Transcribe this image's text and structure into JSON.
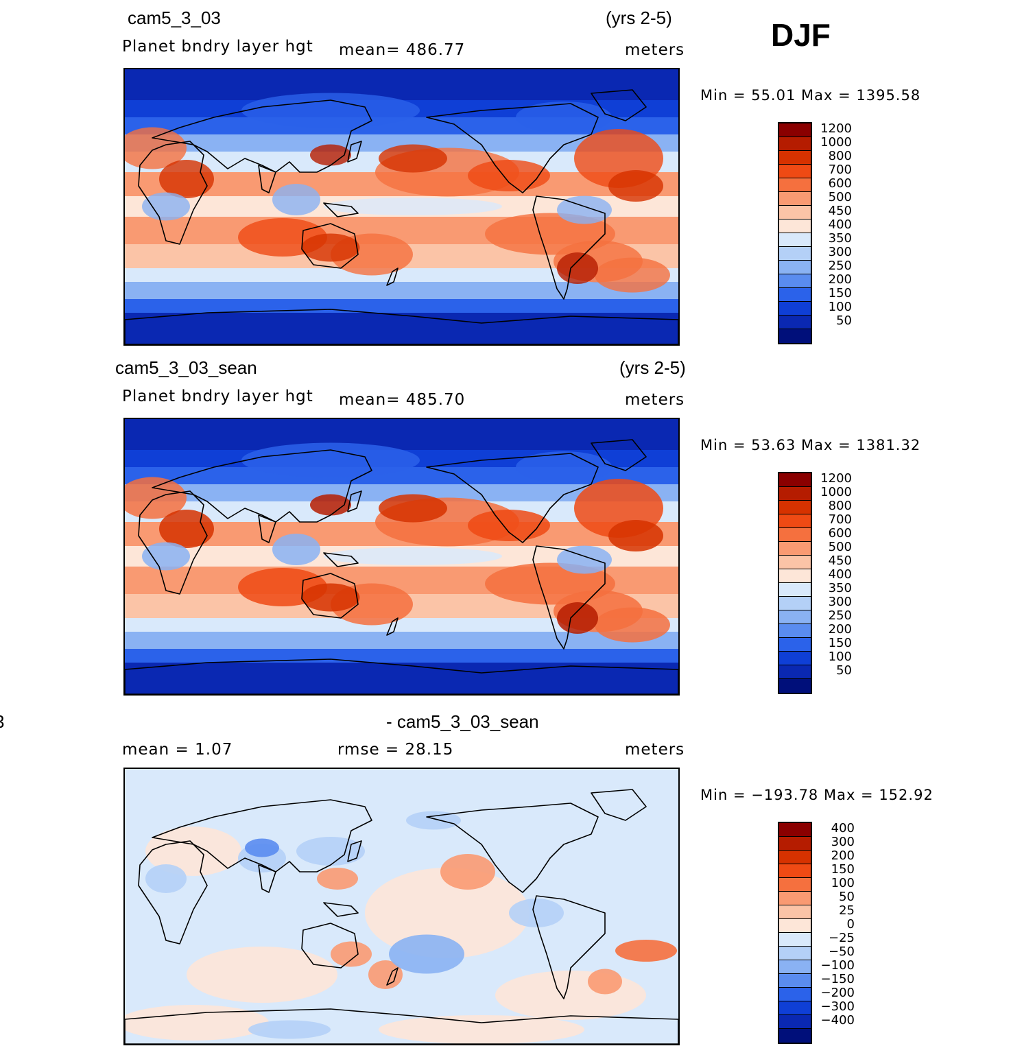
{
  "season_label": "DJF",
  "units": "meters",
  "panels": [
    {
      "case_name": "cam5_3_03",
      "years": "(yrs 2-5)",
      "variable": "Planet  bndry  layer  hgt",
      "mean_text": "mean=  486.77",
      "minmax_text": "Min  =    55.01  Max  =  1395.58",
      "fill": "full"
    },
    {
      "case_name": "cam5_3_03_sean",
      "years": "(yrs 2-5)",
      "variable": "Planet  bndry  layer  hgt",
      "mean_text": "mean=  485.70",
      "minmax_text": "Min  =    53.63  Max  =  1381.32",
      "fill": "full"
    },
    {
      "left_fragment": "3",
      "case_name": "- cam5_3_03_sean",
      "mean_text": "mean  =     1.07",
      "rmse_text": "rmse  =    28.15",
      "minmax_text": "Min  = −193.78  Max  =  152.92",
      "fill": "diff"
    }
  ],
  "colorbar_levels": [
    "1200",
    "1000",
    "800",
    "700",
    "600",
    "500",
    "450",
    "400",
    "350",
    "300",
    "250",
    "200",
    "150",
    "100",
    "50"
  ],
  "colorbar_colors": [
    "#8a0000",
    "#b51c00",
    "#d63200",
    "#ef4a14",
    "#f5703e",
    "#f99a72",
    "#fbc4a7",
    "#fde6d8",
    "#d9e9fb",
    "#b4d0f7",
    "#8ab2f3",
    "#5a8cef",
    "#2b62ea",
    "#0f3fd6",
    "#0a28b2",
    "#000f7a"
  ],
  "diff_levels": [
    "400",
    "300",
    "200",
    "150",
    "100",
    "50",
    "25",
    "0",
    "−25",
    "−50",
    "−100",
    "−150",
    "−200",
    "−300",
    "−400"
  ],
  "diff_colors": [
    "#8a0000",
    "#b51c00",
    "#d63200",
    "#ef4a14",
    "#f5703e",
    "#f99a72",
    "#fbc4a7",
    "#fde6d8",
    "#d9e9fb",
    "#b4d0f7",
    "#8ab2f3",
    "#5a8cef",
    "#2b62ea",
    "#0f3fd6",
    "#0a28b2",
    "#000f7a"
  ]
}
